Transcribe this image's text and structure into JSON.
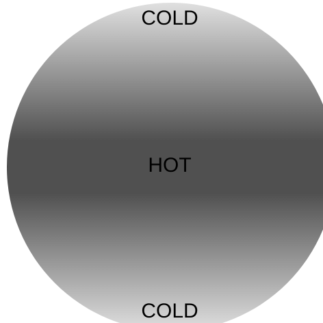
{
  "labels": {
    "top": "COLD",
    "center": "HOT",
    "bottom": "COLD"
  }
}
